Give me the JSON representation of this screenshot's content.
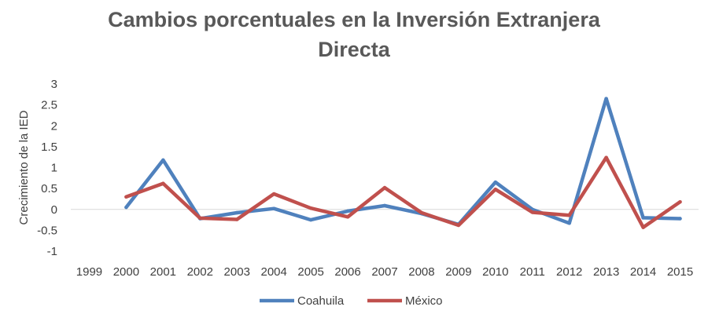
{
  "chart_data": {
    "type": "line",
    "title_lines": [
      "Cambios porcentuales en la Inversión Extranjera",
      "Directa"
    ],
    "ylabel": "Crecimiento de la IED",
    "xlabel": "",
    "categories": [
      "1999",
      "2000",
      "2001",
      "2002",
      "2003",
      "2004",
      "2005",
      "2006",
      "2007",
      "2008",
      "2009",
      "2010",
      "2011",
      "2012",
      "2013",
      "2014",
      "2015"
    ],
    "ylim": [
      -1,
      3
    ],
    "yticks": [
      "3",
      "2.5",
      "2",
      "1.5",
      "1",
      "0.5",
      "0",
      "-0.5",
      "-1"
    ],
    "ytick_values": [
      3,
      2.5,
      2,
      1.5,
      1,
      0.5,
      0,
      -0.5,
      -1
    ],
    "grid": false,
    "legend_position": "bottom",
    "series": [
      {
        "name": "Coahuila",
        "color": "#4f81bd",
        "values": [
          null,
          0.05,
          1.18,
          -0.22,
          -0.08,
          0.02,
          -0.25,
          -0.04,
          0.09,
          -0.1,
          -0.36,
          0.65,
          0.0,
          -0.33,
          2.65,
          -0.2,
          -0.22
        ]
      },
      {
        "name": "México",
        "color": "#c0504d",
        "values": [
          null,
          0.3,
          0.62,
          -0.21,
          -0.24,
          0.37,
          0.03,
          -0.18,
          0.52,
          -0.08,
          -0.38,
          0.48,
          -0.07,
          -0.14,
          1.24,
          -0.43,
          0.18
        ]
      }
    ]
  }
}
